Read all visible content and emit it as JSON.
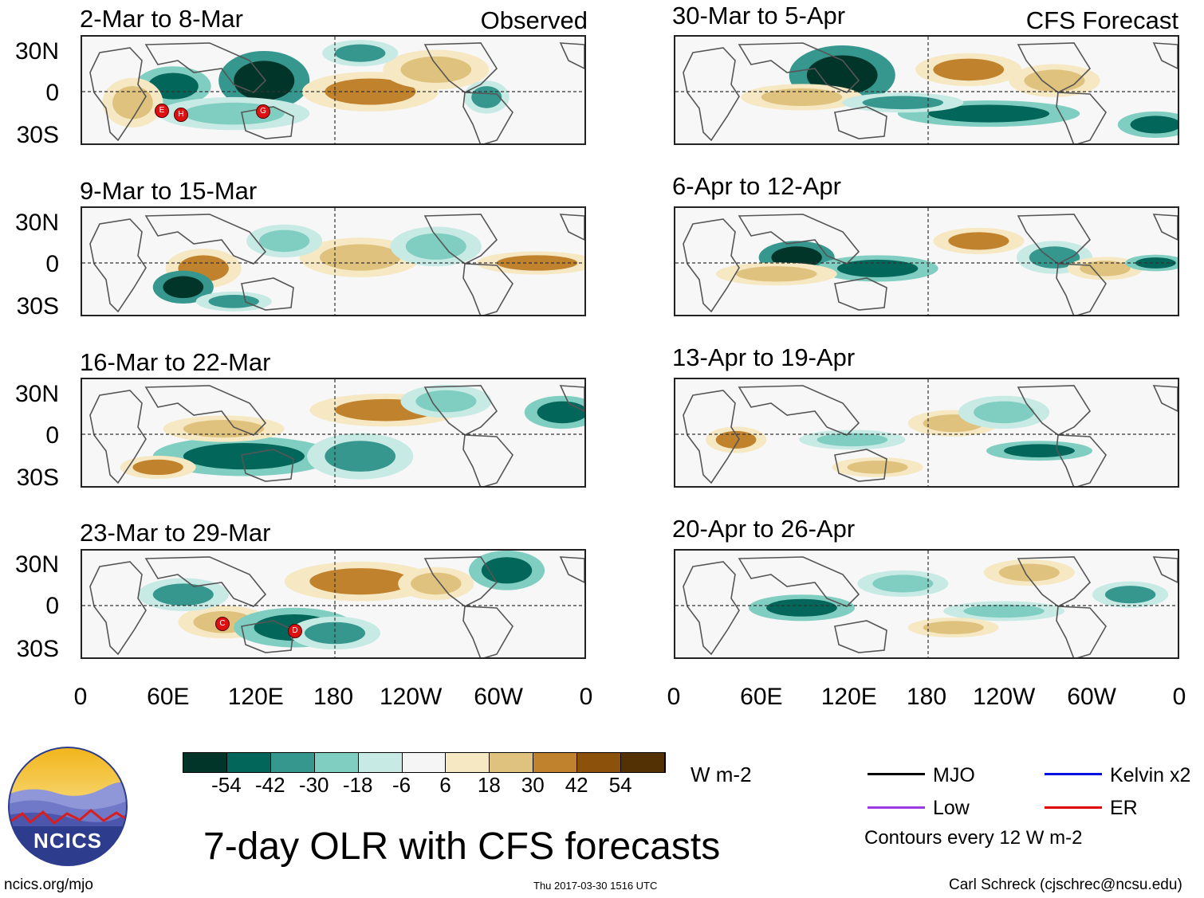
{
  "left_tag": "Observed",
  "right_tag": "CFS Forecast",
  "panels": {
    "p1": {
      "title": "2-Mar to 8-Mar"
    },
    "p2": {
      "title": "9-Mar to 15-Mar"
    },
    "p3": {
      "title": "16-Mar to 22-Mar"
    },
    "p4": {
      "title": "23-Mar to 29-Mar"
    },
    "p5": {
      "title": "30-Mar to 5-Apr"
    },
    "p6": {
      "title": "6-Apr to 12-Apr"
    },
    "p7": {
      "title": "13-Apr to 19-Apr"
    },
    "p8": {
      "title": "20-Apr to 26-Apr"
    }
  },
  "lat_labels": {
    "n30": "30N",
    "eq": "0",
    "s30": "30S"
  },
  "lon_labels": [
    "0",
    "60E",
    "120E",
    "180",
    "120W",
    "60W",
    "0"
  ],
  "storm_markers": {
    "m1": "E",
    "m2": "H",
    "m3": "G",
    "m4": "C",
    "m5": "D"
  },
  "colorbar": {
    "colors": [
      "#01352a",
      "#03665a",
      "#36978f",
      "#80cec1",
      "#c7eae5",
      "#f5f5f5",
      "#f6e8c3",
      "#dfc27d",
      "#c0822c",
      "#8c510a",
      "#543005"
    ],
    "ticks": [
      "-54",
      "-42",
      "-30",
      "-18",
      "-6",
      "6",
      "18",
      "30",
      "42",
      "54"
    ],
    "units": "W m-2"
  },
  "legend": {
    "mjo": {
      "label": "MJO",
      "color": "#000000"
    },
    "kelvin": {
      "label": "Kelvin x2",
      "color": "#0010e0"
    },
    "low": {
      "label": "Low",
      "color": "#9a3be0"
    },
    "er": {
      "label": "ER",
      "color": "#e00000"
    },
    "note": "Contours every 12 W m-2"
  },
  "logo_text": "NCICS",
  "main_title": "7-day OLR with CFS forecasts",
  "footer": {
    "url": "ncics.org/mjo",
    "timestamp": "Thu 2017-03-30 1516 UTC",
    "credit": "Carl Schreck (cjschrec@ncsu.edu)"
  }
}
